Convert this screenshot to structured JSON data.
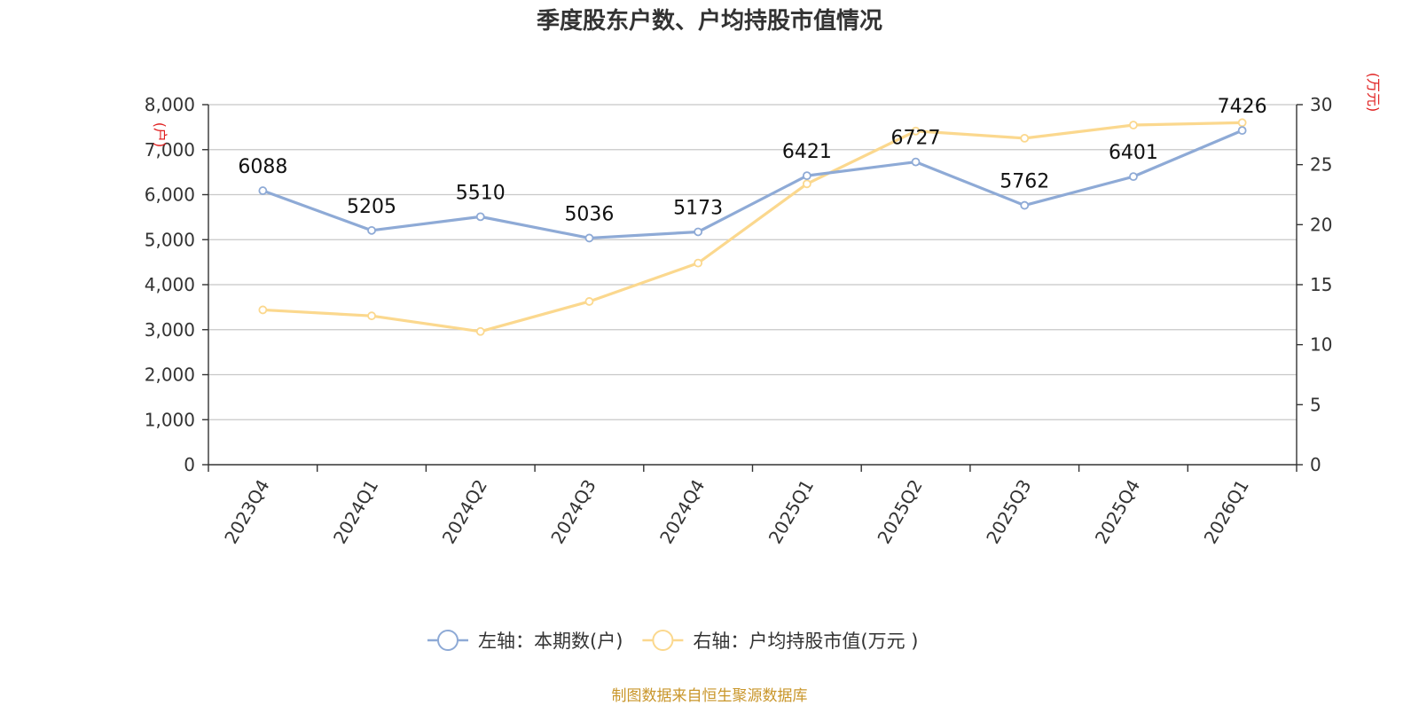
{
  "chart_data": {
    "type": "line",
    "title": "季度股东户数、户均持股市值情况",
    "categories": [
      "2023Q4",
      "2024Q1",
      "2024Q2",
      "2024Q3",
      "2024Q4",
      "2025Q1",
      "2025Q2",
      "2025Q3",
      "2025Q4",
      "2026Q1"
    ],
    "series": [
      {
        "name": "左轴：本期数(户)",
        "axis": "left",
        "color": "#8eaad6",
        "values": [
          6088,
          5205,
          5510,
          5036,
          5173,
          6421,
          6727,
          5762,
          6401,
          7426
        ],
        "labels": [
          "6088",
          "5205",
          "5510",
          "5036",
          "5173",
          "6421",
          "6727",
          "5762",
          "6401",
          "7426"
        ]
      },
      {
        "name": "右轴：户均持股市值(万元 )",
        "axis": "right",
        "color": "#fbd88e",
        "values": [
          12.9,
          12.4,
          11.1,
          13.6,
          16.8,
          23.4,
          27.8,
          27.2,
          28.3,
          28.5
        ]
      }
    ],
    "y_left": {
      "unit": "(户)",
      "ylim": [
        0,
        8000
      ],
      "ticks": [
        0,
        1000,
        2000,
        3000,
        4000,
        5000,
        6000,
        7000,
        8000
      ],
      "tick_labels": [
        "0",
        "1,000",
        "2,000",
        "3,000",
        "4,000",
        "5,000",
        "6,000",
        "7,000",
        "8,000"
      ]
    },
    "y_right": {
      "unit": "(万元)",
      "ylim": [
        0,
        30
      ],
      "ticks": [
        0,
        5,
        10,
        15,
        20,
        25,
        30
      ],
      "tick_labels": [
        "0",
        "5",
        "10",
        "15",
        "20",
        "25",
        "30"
      ]
    },
    "legend_position": "bottom",
    "grid": true,
    "source": "制图数据来自恒生聚源数据库"
  }
}
